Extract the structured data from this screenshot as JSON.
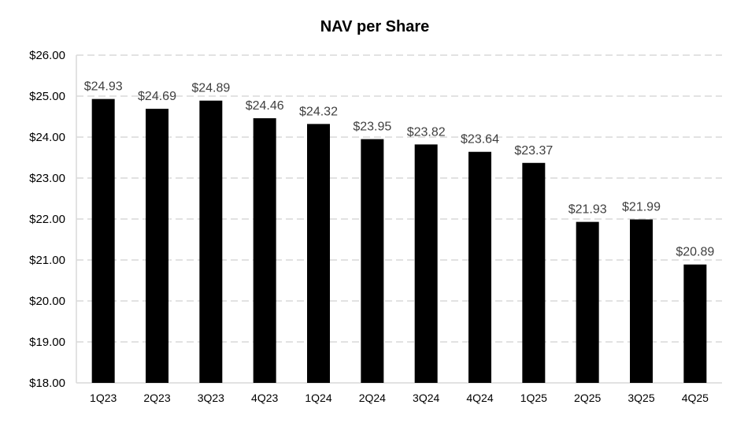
{
  "chart_data": {
    "type": "bar",
    "title": "NAV per Share",
    "xlabel": "",
    "ylabel": "",
    "categories": [
      "1Q23",
      "2Q23",
      "3Q23",
      "4Q23",
      "1Q24",
      "2Q24",
      "3Q24",
      "4Q24",
      "1Q25",
      "2Q25",
      "3Q25",
      "4Q25"
    ],
    "values": [
      24.93,
      24.69,
      24.89,
      24.46,
      24.32,
      23.95,
      23.82,
      23.64,
      23.37,
      21.93,
      21.99,
      20.89
    ],
    "data_labels": [
      "$24.93",
      "$24.69",
      "$24.89",
      "$24.46",
      "$24.32",
      "$23.95",
      "$23.82",
      "$23.64",
      "$23.37",
      "$21.93",
      "$21.99",
      "$20.89"
    ],
    "ylim": [
      18,
      26
    ],
    "y_ticks": [
      18,
      19,
      20,
      21,
      22,
      23,
      24,
      25,
      26
    ],
    "y_tick_labels": [
      "$18.00",
      "$19.00",
      "$20.00",
      "$21.00",
      "$22.00",
      "$23.00",
      "$24.00",
      "$25.00",
      "$26.00"
    ],
    "grid": true,
    "legend": "none",
    "colors": {
      "bar": "#000000",
      "grid": "#d9d9d9",
      "data_label": "#404040",
      "text": "#000000"
    }
  }
}
